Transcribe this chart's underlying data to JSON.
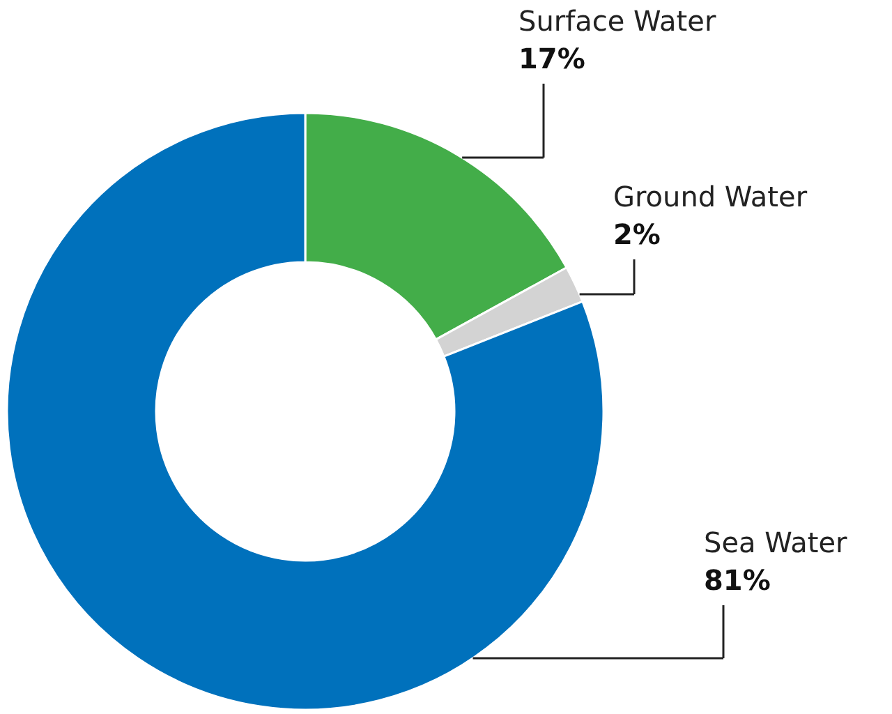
{
  "chart_data": {
    "type": "donut",
    "categories": [
      "Surface Water",
      "Ground Water",
      "Sea Water"
    ],
    "values": [
      17,
      2,
      81
    ],
    "colors": [
      "#43ad49",
      "#d3d3d3",
      "#0071bc"
    ],
    "value_labels": [
      "17%",
      "2%",
      "81%"
    ]
  }
}
